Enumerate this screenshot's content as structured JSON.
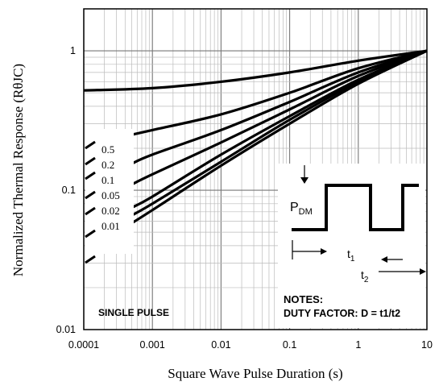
{
  "chart_data": {
    "type": "line",
    "title": "",
    "xlabel": "Square Wave Pulse Duration (s)",
    "ylabel": "Normalized Thermal Response (RθJC)",
    "xscale": "log",
    "yscale": "log",
    "xlim": [
      0.0001,
      10
    ],
    "ylim": [
      0.01,
      2
    ],
    "grid": true,
    "x_ticks": [
      "0.0001",
      "0.001",
      "0.01",
      "0.1",
      "1",
      "10"
    ],
    "y_ticks": [
      "1",
      "0.1",
      "0.01"
    ],
    "legend_placement": "left",
    "series": [
      {
        "name": "0.5",
        "x": [
          0.0001,
          0.001,
          0.01,
          0.1,
          1,
          10
        ],
        "y": [
          0.52,
          0.54,
          0.6,
          0.7,
          0.85,
          1.0
        ]
      },
      {
        "name": "0.2",
        "x": [
          0.0005,
          0.001,
          0.01,
          0.1,
          1,
          10
        ],
        "y": [
          0.25,
          0.27,
          0.35,
          0.5,
          0.75,
          1.0
        ]
      },
      {
        "name": "0.1",
        "x": [
          0.0005,
          0.001,
          0.01,
          0.1,
          1,
          10
        ],
        "y": [
          0.155,
          0.18,
          0.27,
          0.43,
          0.7,
          1.0
        ]
      },
      {
        "name": "0.05",
        "x": [
          0.0005,
          0.001,
          0.01,
          0.1,
          1,
          10
        ],
        "y": [
          0.11,
          0.13,
          0.22,
          0.38,
          0.66,
          1.0
        ]
      },
      {
        "name": "0.02",
        "x": [
          0.0005,
          0.001,
          0.01,
          0.1,
          1,
          10
        ],
        "y": [
          0.075,
          0.09,
          0.18,
          0.34,
          0.62,
          1.0
        ]
      },
      {
        "name": "0.01",
        "x": [
          0.0005,
          0.001,
          0.01,
          0.1,
          1,
          10
        ],
        "y": [
          0.066,
          0.08,
          0.16,
          0.32,
          0.6,
          1.0
        ]
      },
      {
        "name": "SINGLE PULSE",
        "x": [
          0.0005,
          0.001,
          0.01,
          0.1,
          1,
          10
        ],
        "y": [
          0.058,
          0.072,
          0.15,
          0.3,
          0.58,
          1.0
        ]
      }
    ],
    "annotations": {
      "single_pulse": "SINGLE PULSE",
      "pdm_main": "P",
      "pdm_sub": "DM",
      "t1_main": "t",
      "t1_sub": "1",
      "t2_main": "t",
      "t2_sub": "2",
      "notes_title": "NOTES:",
      "notes_text": "DUTY FACTOR: D = t1/t2"
    }
  }
}
